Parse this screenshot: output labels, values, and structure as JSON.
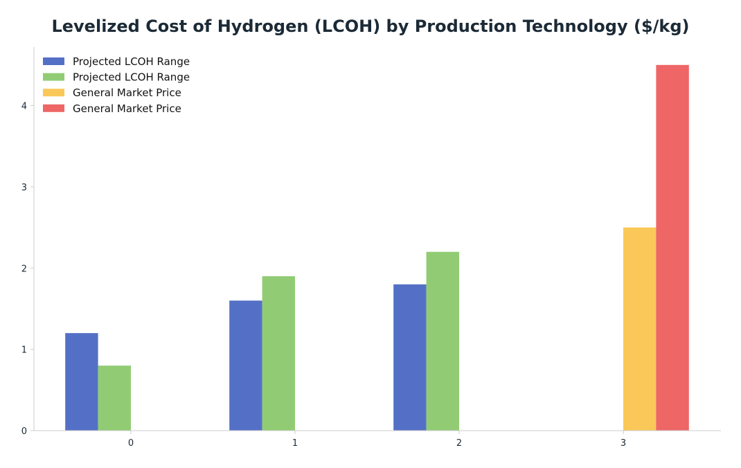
{
  "chart_data": {
    "type": "bar",
    "title": "Levelized Cost of Hydrogen (LCOH) by Production Technology ($/kg)",
    "xlabel": "",
    "ylabel": "",
    "categories": [
      "0",
      "1",
      "2",
      "3"
    ],
    "ylim": [
      0,
      4.72
    ],
    "yticks": [
      0,
      1,
      2,
      3,
      4
    ],
    "grid": false,
    "legend_position": "top-left",
    "series": [
      {
        "name": "Projected LCOH Range",
        "color": "#5470c6",
        "values": [
          1.2,
          1.6,
          1.8,
          null
        ]
      },
      {
        "name": "Projected LCOH Range",
        "color": "#91cc75",
        "values": [
          0.8,
          1.9,
          2.2,
          null
        ]
      },
      {
        "name": "General Market Price",
        "color": "#fac858",
        "values": [
          null,
          null,
          null,
          2.5
        ]
      },
      {
        "name": "General Market Price",
        "color": "#ee6666",
        "values": [
          null,
          null,
          null,
          4.5
        ]
      }
    ]
  }
}
